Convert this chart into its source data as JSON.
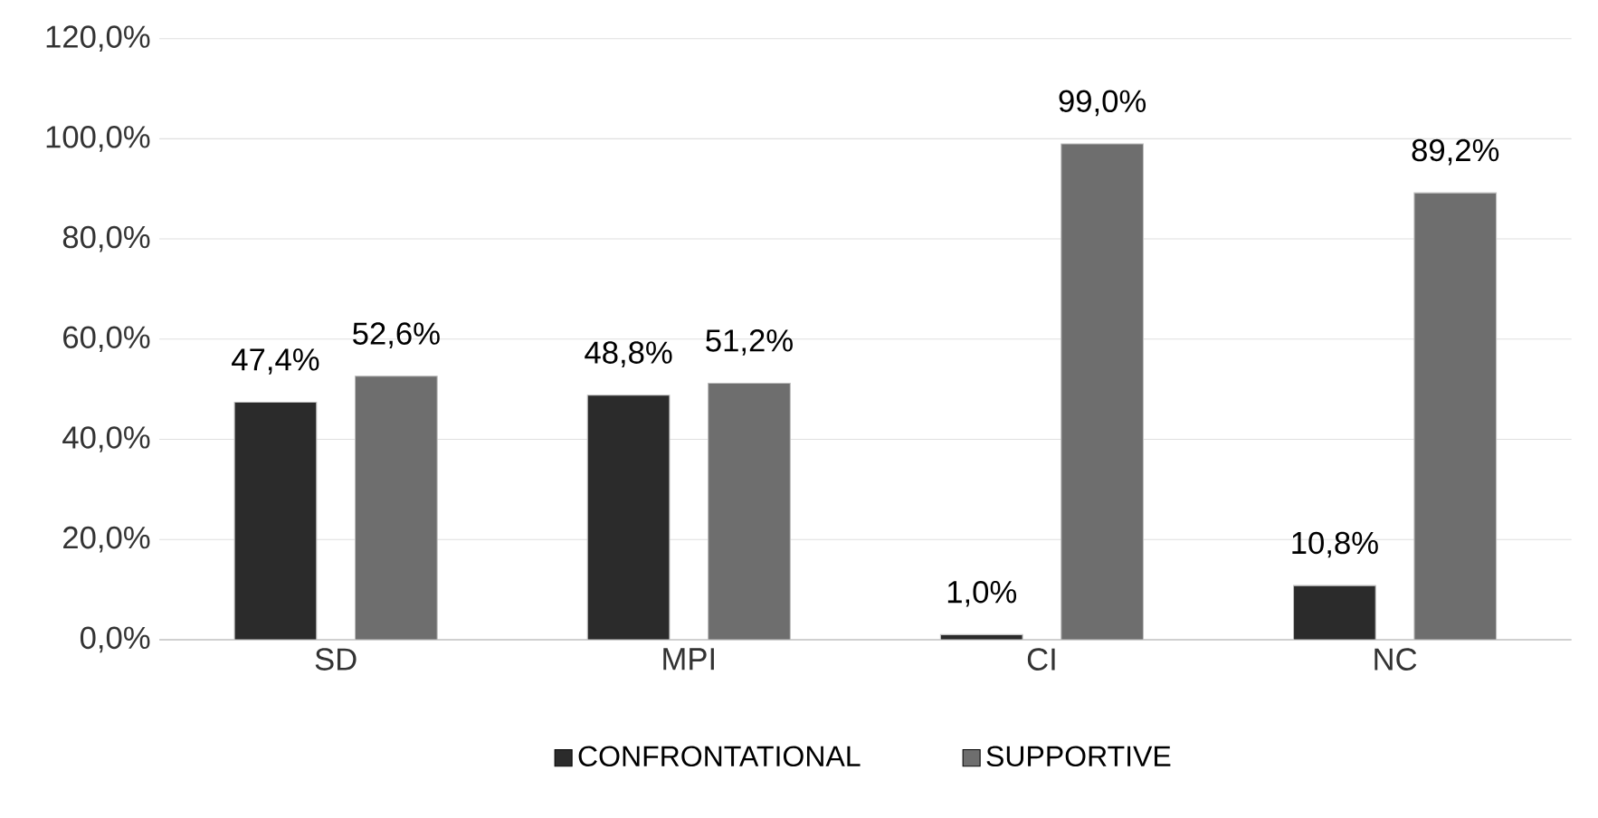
{
  "chart_data": {
    "type": "bar",
    "categories": [
      "SD",
      "MPI",
      "CI",
      "NC"
    ],
    "series": [
      {
        "name": "CONFRONTATIONAL",
        "color": "#2b2b2b",
        "values": [
          47.4,
          48.8,
          1.0,
          10.8
        ],
        "value_labels": [
          "47,4%",
          "48,8%",
          "1,0%",
          "10,8%"
        ]
      },
      {
        "name": "SUPPORTIVE",
        "color": "#6e6e6e",
        "values": [
          52.6,
          51.2,
          99.0,
          89.2
        ],
        "value_labels": [
          "52,6%",
          "51,2%",
          "99,0%",
          "89,2%"
        ]
      }
    ],
    "ylim": [
      0,
      120
    ],
    "yticks": [
      {
        "value": 0,
        "label": "0,0%"
      },
      {
        "value": 20,
        "label": "20,0%"
      },
      {
        "value": 40,
        "label": "40,0%"
      },
      {
        "value": 60,
        "label": "60,0%"
      },
      {
        "value": 80,
        "label": "80,0%"
      },
      {
        "value": 100,
        "label": "100,0%"
      },
      {
        "value": 120,
        "label": "120,0%"
      }
    ],
    "grid": "y",
    "legend": "bottom"
  }
}
